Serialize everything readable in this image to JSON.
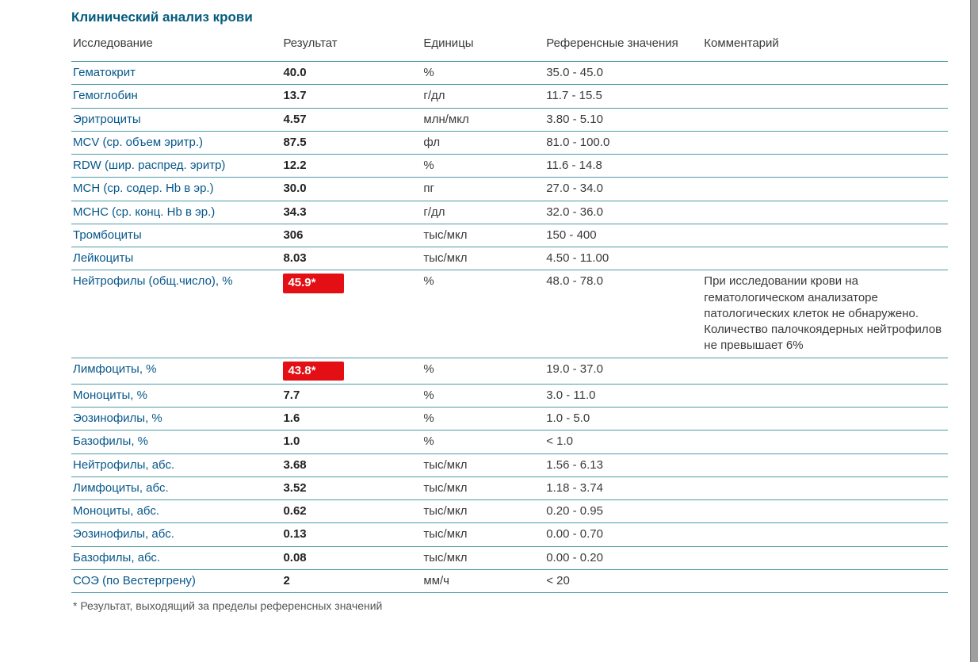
{
  "title": "Клинический анализ крови",
  "columns": {
    "test": "Исследование",
    "result": "Результат",
    "units": "Единицы",
    "reference": "Референсные значения",
    "comment": "Комментарий"
  },
  "col_widths": {
    "test": "24%",
    "result": "16%",
    "units": "14%",
    "reference": "18%",
    "comment": "28%"
  },
  "row_border_color": "#4e9ba8",
  "test_name_color": "#07578b",
  "flag_bg": "#e30f14",
  "flag_fg": "#ffffff",
  "title_color": "#045b7d",
  "rows": [
    {
      "name": "Гематокрит",
      "result": "40.0",
      "units": "%",
      "ref": "35.0 - 45.0",
      "comment": "",
      "flagged": false
    },
    {
      "name": "Гемоглобин",
      "result": "13.7",
      "units": "г/дл",
      "ref": "11.7 - 15.5",
      "comment": "",
      "flagged": false
    },
    {
      "name": "Эритроциты",
      "result": "4.57",
      "units": "млн/мкл",
      "ref": "3.80 - 5.10",
      "comment": "",
      "flagged": false
    },
    {
      "name": "MCV (ср. объем эритр.)",
      "result": "87.5",
      "units": "фл",
      "ref": "81.0 - 100.0",
      "comment": "",
      "flagged": false
    },
    {
      "name": "RDW (шир. распред. эритр)",
      "result": "12.2",
      "units": "%",
      "ref": "11.6 - 14.8",
      "comment": "",
      "flagged": false
    },
    {
      "name": "MCH (ср. содер. Hb в эр.)",
      "result": "30.0",
      "units": "пг",
      "ref": "27.0 - 34.0",
      "comment": "",
      "flagged": false
    },
    {
      "name": "MCHC (ср. конц. Hb в эр.)",
      "result": "34.3",
      "units": "г/дл",
      "ref": "32.0 - 36.0",
      "comment": "",
      "flagged": false
    },
    {
      "name": "Тромбоциты",
      "result": "306",
      "units": "тыс/мкл",
      "ref": "150 - 400",
      "comment": "",
      "flagged": false
    },
    {
      "name": "Лейкоциты",
      "result": "8.03",
      "units": "тыс/мкл",
      "ref": "4.50 - 11.00",
      "comment": "",
      "flagged": false
    },
    {
      "name": "Нейтрофилы (общ.число), %",
      "result": "45.9*",
      "units": "%",
      "ref": "48.0 - 78.0",
      "comment": "При исследовании крови на гематологическом анализаторе патологических клеток не обнаружено. Количество палочкоядерных нейтрофилов не превышает 6%",
      "flagged": true
    },
    {
      "name": "Лимфоциты, %",
      "result": "43.8*",
      "units": "%",
      "ref": "19.0 - 37.0",
      "comment": "",
      "flagged": true
    },
    {
      "name": "Моноциты, %",
      "result": "7.7",
      "units": "%",
      "ref": "3.0 - 11.0",
      "comment": "",
      "flagged": false
    },
    {
      "name": "Эозинофилы, %",
      "result": "1.6",
      "units": "%",
      "ref": "1.0 - 5.0",
      "comment": "",
      "flagged": false
    },
    {
      "name": "Базофилы, %",
      "result": "1.0",
      "units": "%",
      "ref": "< 1.0",
      "comment": "",
      "flagged": false
    },
    {
      "name": "Нейтрофилы, абс.",
      "result": "3.68",
      "units": "тыс/мкл",
      "ref": "1.56 - 6.13",
      "comment": "",
      "flagged": false
    },
    {
      "name": "Лимфоциты, абс.",
      "result": "3.52",
      "units": "тыс/мкл",
      "ref": "1.18 - 3.74",
      "comment": "",
      "flagged": false
    },
    {
      "name": "Моноциты, абс.",
      "result": "0.62",
      "units": "тыс/мкл",
      "ref": "0.20 - 0.95",
      "comment": "",
      "flagged": false
    },
    {
      "name": "Эозинофилы, абс.",
      "result": "0.13",
      "units": "тыс/мкл",
      "ref": "0.00 - 0.70",
      "comment": "",
      "flagged": false
    },
    {
      "name": "Базофилы, абс.",
      "result": "0.08",
      "units": "тыс/мкл",
      "ref": "0.00 - 0.20",
      "comment": "",
      "flagged": false
    },
    {
      "name": "СОЭ (по Вестергрену)",
      "result": "2",
      "units": "мм/ч",
      "ref": "< 20",
      "comment": "",
      "flagged": false
    }
  ],
  "footnote": "* Результат, выходящий за пределы референсных значений"
}
